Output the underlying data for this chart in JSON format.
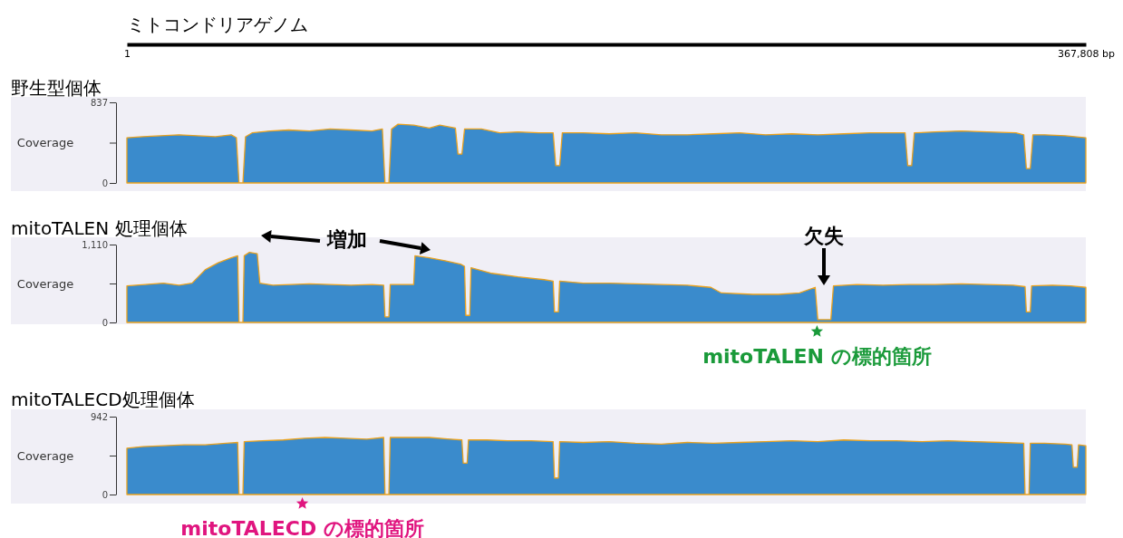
{
  "chart_data": [
    {
      "type": "area",
      "title": "野生型個体",
      "ylabel": "Coverage",
      "xlabel": "ミトコンドリアゲノム",
      "xlim": [
        1,
        367808
      ],
      "xticks": [
        1,
        {
          "value": 367808,
          "label": "367,808 bp"
        }
      ],
      "ylim": [
        0,
        837
      ],
      "yticks": [
        0,
        {
          "value": 418.5,
          "label": null
        },
        837
      ],
      "x": [
        1,
        6000,
        13000,
        20000,
        27000,
        34000,
        40000,
        42000,
        43000,
        44500,
        45500,
        48000,
        55000,
        62000,
        70000,
        78000,
        86000,
        94000,
        98000,
        99000,
        100500,
        101500,
        104000,
        110000,
        116000,
        120000,
        126000,
        127000,
        128500,
        129500,
        136000,
        143000,
        150000,
        158000,
        163500,
        164500,
        166000,
        167000,
        175000,
        185000,
        195000,
        205000,
        215000,
        225000,
        235000,
        245000,
        255000,
        265000,
        275000,
        285000,
        295000,
        298500,
        299500,
        301000,
        302000,
        310000,
        320000,
        330000,
        341000,
        344000,
        345000,
        346500,
        347500,
        352000,
        360000,
        367808
      ],
      "series": [
        {
          "color": "#3a8bcc",
          "values": [
            470,
            480,
            490,
            500,
            490,
            480,
            500,
            470,
            0,
            0,
            480,
            520,
            540,
            550,
            540,
            560,
            550,
            540,
            560,
            0,
            0,
            560,
            610,
            600,
            570,
            600,
            570,
            300,
            300,
            560,
            560,
            520,
            530,
            520,
            520,
            180,
            180,
            520,
            520,
            510,
            520,
            500,
            500,
            510,
            520,
            500,
            510,
            500,
            510,
            520,
            520,
            520,
            180,
            180,
            520,
            530,
            540,
            530,
            520,
            500,
            150,
            150,
            500,
            500,
            490,
            470
          ]
        }
      ]
    },
    {
      "type": "area",
      "title": "mitoTALEN 処理個体",
      "ylabel": "Coverage",
      "xlim": [
        1,
        367808
      ],
      "tick_labels": "y",
      "ylim": [
        0,
        1110
      ],
      "yticks": [
        0,
        {
          "value": 555,
          "label": null
        },
        {
          "value": 1110,
          "label": "1,110"
        }
      ],
      "x": [
        1,
        7000,
        14000,
        20000,
        25000,
        30000,
        35000,
        40000,
        42500,
        43000,
        44500,
        45000,
        47000,
        50000,
        51000,
        56000,
        63000,
        70000,
        78000,
        86000,
        94000,
        98500,
        99000,
        100500,
        101000,
        106000,
        110000,
        110500,
        116000,
        122000,
        128000,
        129500,
        130000,
        131500,
        132000,
        140000,
        150000,
        160000,
        163500,
        164000,
        165500,
        166000,
        175000,
        185000,
        195000,
        205000,
        215000,
        224000,
        228000,
        240000,
        250000,
        258000,
        264000,
        265000,
        270000,
        271000,
        280000,
        290000,
        300000,
        310000,
        320000,
        330000,
        340000,
        344500,
        345000,
        346500,
        347000,
        355000,
        362000,
        367808
      ],
      "series": [
        {
          "color": "#3a8bcc",
          "values": [
            520,
            540,
            560,
            530,
            560,
            750,
            850,
            920,
            950,
            0,
            0,
            950,
            1000,
            980,
            560,
            530,
            540,
            550,
            540,
            530,
            540,
            530,
            80,
            80,
            540,
            540,
            540,
            950,
            920,
            880,
            830,
            800,
            100,
            100,
            780,
            700,
            650,
            610,
            590,
            150,
            150,
            590,
            560,
            560,
            550,
            540,
            530,
            500,
            420,
            400,
            400,
            420,
            500,
            40,
            40,
            520,
            540,
            530,
            540,
            540,
            550,
            540,
            530,
            510,
            150,
            150,
            520,
            530,
            520,
            500
          ]
        }
      ],
      "annotations": [
        "増加",
        "欠失",
        {
          "text": "mitoTALEN の標的箇所",
          "x": 264700,
          "y": 0
        }
      ]
    },
    {
      "type": "area",
      "title": "mitoTALECD処理個体",
      "ylabel": "Coverage",
      "xlim": [
        1,
        367808
      ],
      "tick_labels": "y",
      "ylim": [
        0,
        942
      ],
      "yticks": [
        0,
        {
          "value": 471,
          "label": null
        },
        942
      ],
      "x": [
        1,
        6000,
        14000,
        22000,
        30000,
        38000,
        42500,
        43000,
        44500,
        45000,
        52000,
        60000,
        68000,
        76000,
        84000,
        92000,
        98500,
        99000,
        100500,
        101000,
        108000,
        116000,
        124000,
        128500,
        129000,
        130500,
        131000,
        138000,
        146000,
        155000,
        163500,
        164000,
        165500,
        166000,
        175000,
        185000,
        195000,
        205000,
        215000,
        225000,
        235000,
        245000,
        255000,
        265000,
        275000,
        285000,
        295000,
        305000,
        315000,
        325000,
        335000,
        344000,
        344500,
        346000,
        346500,
        352000,
        360000,
        362500,
        363000,
        364500,
        365000,
        367808
      ],
      "series": [
        {
          "color": "#3a8bcc",
          "values": [
            560,
            580,
            590,
            600,
            600,
            620,
            630,
            0,
            0,
            640,
            650,
            660,
            680,
            690,
            680,
            670,
            690,
            0,
            0,
            690,
            690,
            690,
            670,
            660,
            380,
            380,
            660,
            660,
            650,
            650,
            640,
            200,
            200,
            640,
            630,
            640,
            620,
            610,
            630,
            620,
            630,
            640,
            650,
            640,
            660,
            650,
            650,
            640,
            650,
            640,
            630,
            620,
            0,
            0,
            620,
            620,
            610,
            600,
            330,
            330,
            600,
            590
          ]
        }
      ],
      "annotations": [
        {
          "text": "mitoTALECD の標的箇所",
          "x": 67300,
          "y": 0
        }
      ]
    }
  ]
}
